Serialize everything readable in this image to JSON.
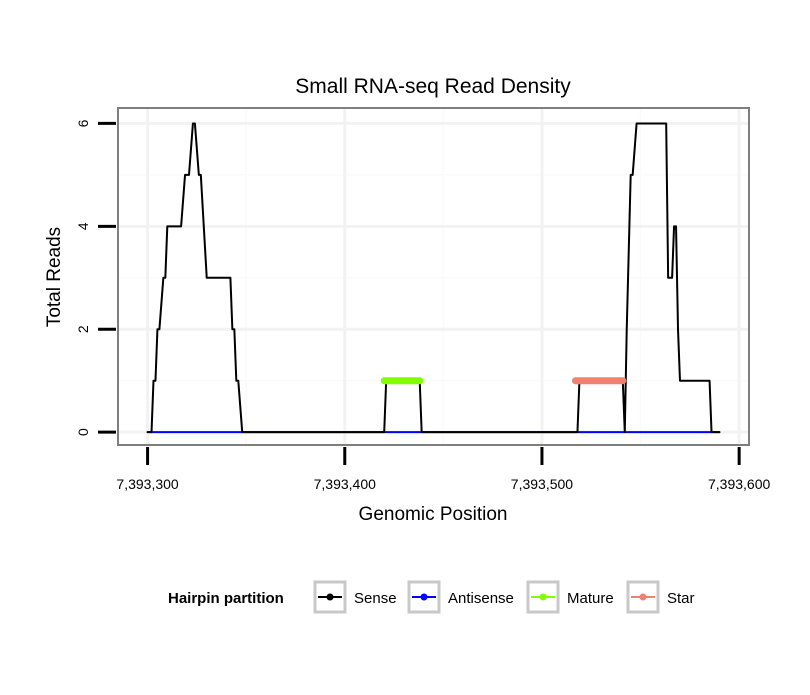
{
  "chart_data": {
    "type": "line",
    "title": "Small RNA-seq Read Density",
    "xlabel": "Genomic Position",
    "ylabel": "Total Reads",
    "xlim": [
      7393285,
      7393605
    ],
    "ylim": [
      -0.25,
      6.3
    ],
    "x_ticks": [
      7393300,
      7393400,
      7393500,
      7393600
    ],
    "x_tick_labels": [
      "7,393,300",
      "7,393,400",
      "7,393,500",
      "7,393,600"
    ],
    "y_ticks": [
      0,
      2,
      4,
      6
    ],
    "y_tick_labels": [
      "0",
      "2",
      "4",
      "6"
    ],
    "grid": true,
    "legend": {
      "title": "Hairpin partition",
      "position": "bottom",
      "entries": [
        "Sense",
        "Antisense",
        "Mature",
        "Star"
      ]
    },
    "series": [
      {
        "name": "Sense",
        "color": "#000000",
        "points": [
          [
            7393300,
            0
          ],
          [
            7393302,
            0
          ],
          [
            7393303,
            1
          ],
          [
            7393304,
            1
          ],
          [
            7393305,
            2
          ],
          [
            7393306,
            2
          ],
          [
            7393308,
            3
          ],
          [
            7393309,
            3
          ],
          [
            7393310,
            4
          ],
          [
            7393317,
            4
          ],
          [
            7393319,
            5
          ],
          [
            7393321,
            5
          ],
          [
            7393323,
            6
          ],
          [
            7393324,
            6
          ],
          [
            7393326,
            5
          ],
          [
            7393327,
            5
          ],
          [
            7393330,
            3
          ],
          [
            7393342,
            3
          ],
          [
            7393343,
            2
          ],
          [
            7393344,
            2
          ],
          [
            7393345,
            1
          ],
          [
            7393346,
            1
          ],
          [
            7393348,
            0
          ],
          [
            7393420,
            0
          ],
          [
            7393421,
            1
          ],
          [
            7393438,
            1
          ],
          [
            7393439,
            0
          ],
          [
            7393518,
            0
          ],
          [
            7393519,
            1
          ],
          [
            7393541,
            1
          ],
          [
            7393542,
            0
          ],
          [
            7393543,
            2
          ],
          [
            7393545,
            5
          ],
          [
            7393546,
            5
          ],
          [
            7393548,
            6
          ],
          [
            7393563,
            6
          ],
          [
            7393564,
            3
          ],
          [
            7393566,
            3
          ],
          [
            7393567,
            4
          ],
          [
            7393568,
            4
          ],
          [
            7393569,
            2
          ],
          [
            7393570,
            1
          ],
          [
            7393585,
            1
          ],
          [
            7393586,
            0
          ],
          [
            7393590,
            0
          ]
        ]
      },
      {
        "name": "Antisense",
        "color": "#0000ff",
        "points": [
          [
            7393300,
            0
          ],
          [
            7393590,
            0
          ]
        ]
      },
      {
        "name": "Mature",
        "color": "#7fff00",
        "points": [
          [
            7393420,
            1
          ],
          [
            7393438,
            1
          ]
        ]
      },
      {
        "name": "Star",
        "color": "#f08070",
        "points": [
          [
            7393517,
            1
          ],
          [
            7393541,
            1
          ]
        ]
      }
    ]
  }
}
